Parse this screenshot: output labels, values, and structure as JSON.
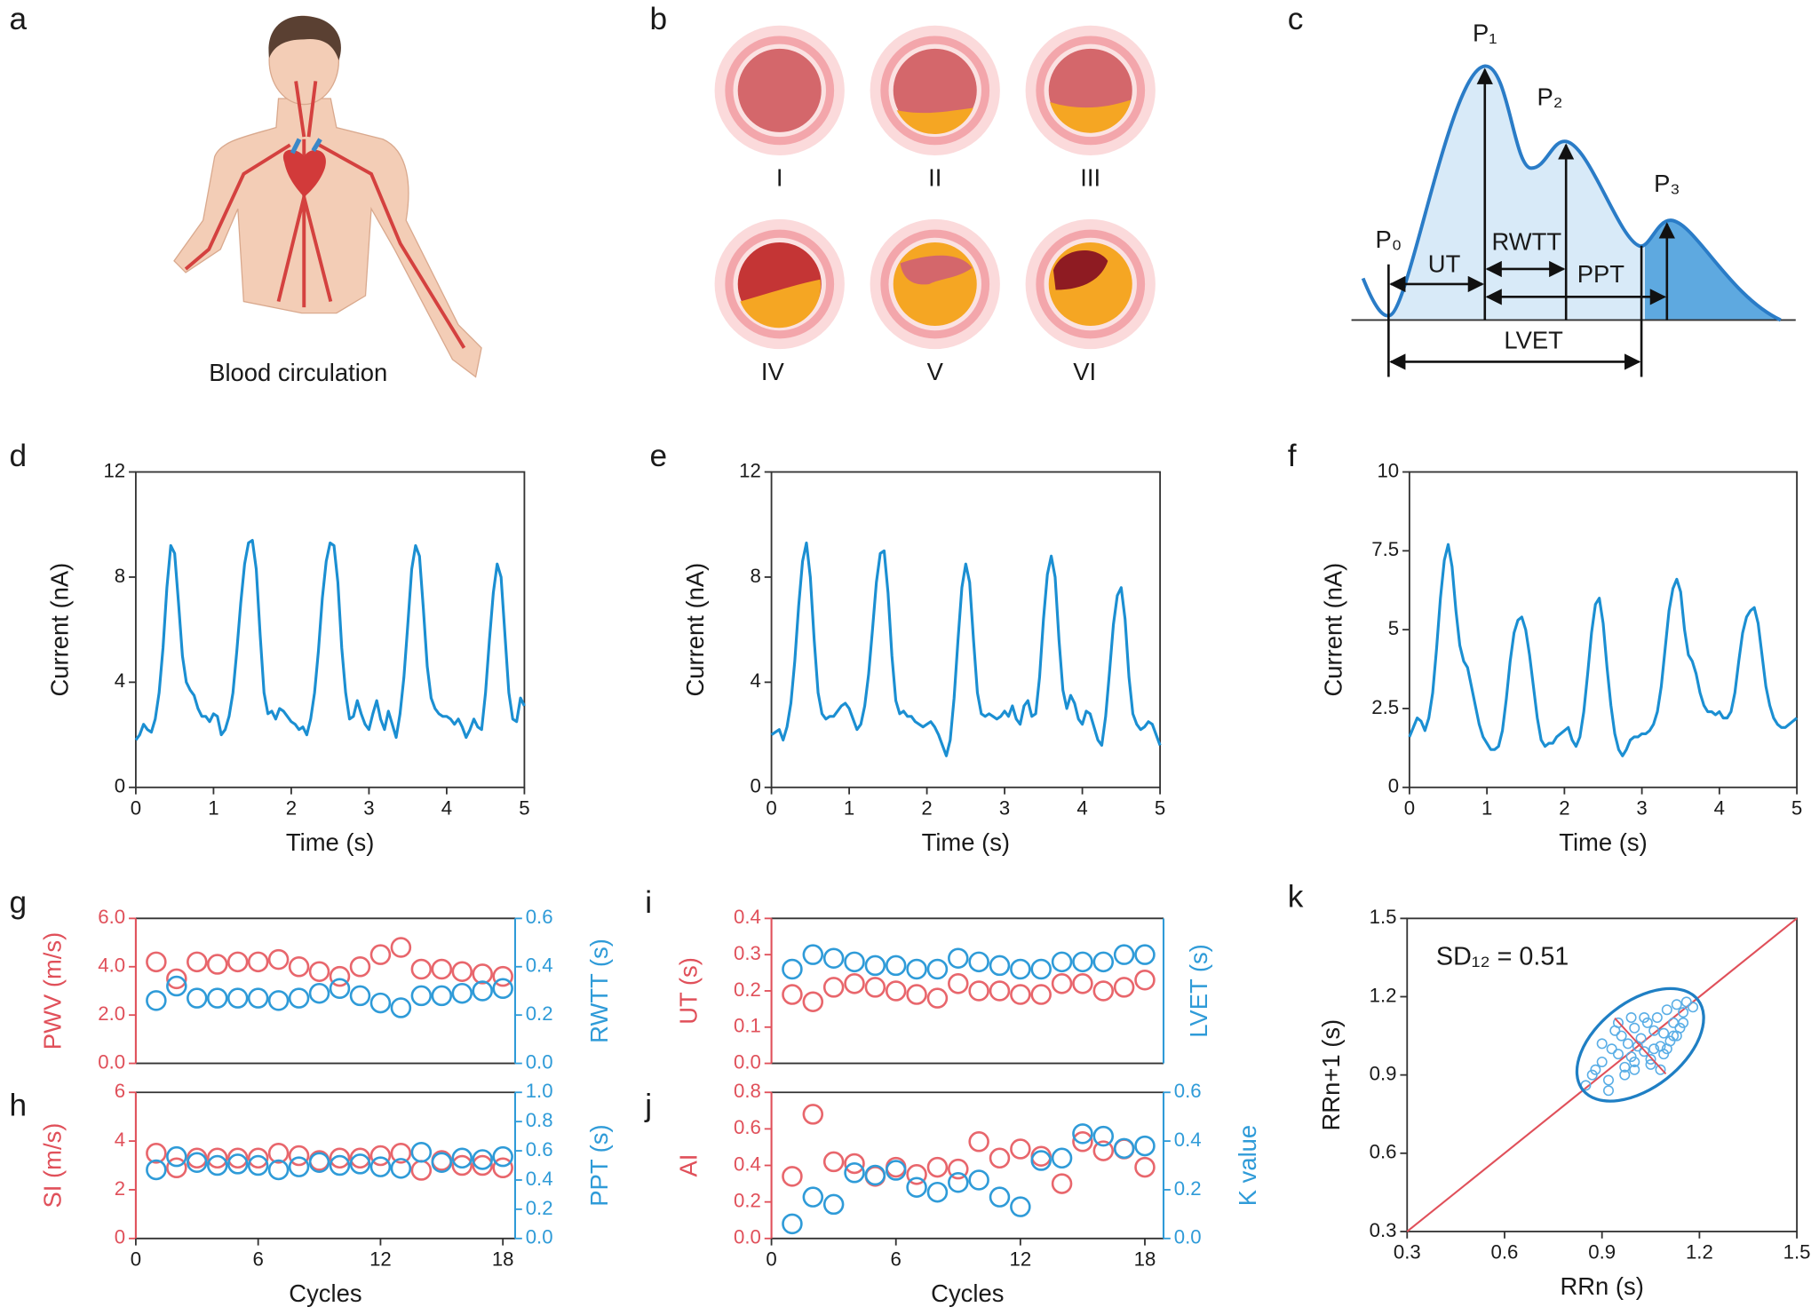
{
  "diagrams": {
    "a": {
      "panel": "a",
      "caption": "Blood circulation"
    },
    "b": {
      "panel": "b",
      "stages": [
        "I",
        "II",
        "III",
        "IV",
        "V",
        "VI"
      ]
    },
    "c": {
      "panel": "c",
      "labels": [
        "P₀",
        "P₁",
        "P₂",
        "P₃",
        "UT",
        "RWTT",
        "PPT",
        "LVET"
      ]
    }
  },
  "chart_data": [
    {
      "panel": "d",
      "type": "line",
      "xlabel": "Time (s)",
      "ylabel": "Current (nA)",
      "color": "#1b8fd2",
      "xlim": [
        0,
        5
      ],
      "ylim": [
        0,
        12
      ],
      "xticks": [
        0,
        1,
        2,
        3,
        4,
        5
      ],
      "yticks": [
        0,
        4,
        8,
        12
      ],
      "x": [
        0,
        0.05,
        0.1,
        0.15,
        0.2,
        0.25,
        0.3,
        0.35,
        0.4,
        0.45,
        0.5,
        0.55,
        0.6,
        0.65,
        0.7,
        0.75,
        0.8,
        0.85,
        0.9,
        0.95,
        1,
        1.05,
        1.1,
        1.15,
        1.2,
        1.25,
        1.3,
        1.35,
        1.4,
        1.45,
        1.5,
        1.55,
        1.6,
        1.65,
        1.7,
        1.75,
        1.8,
        1.85,
        1.9,
        1.95,
        2,
        2.05,
        2.1,
        2.15,
        2.2,
        2.25,
        2.3,
        2.35,
        2.4,
        2.45,
        2.5,
        2.55,
        2.6,
        2.65,
        2.7,
        2.75,
        2.8,
        2.85,
        2.9,
        2.95,
        3,
        3.05,
        3.1,
        3.15,
        3.2,
        3.25,
        3.3,
        3.35,
        3.4,
        3.45,
        3.5,
        3.55,
        3.6,
        3.65,
        3.7,
        3.75,
        3.8,
        3.85,
        3.9,
        3.95,
        4,
        4.05,
        4.1,
        4.15,
        4.2,
        4.25,
        4.3,
        4.35,
        4.4,
        4.45,
        4.5,
        4.55,
        4.6,
        4.65,
        4.7,
        4.75,
        4.8,
        4.85,
        4.9,
        4.95,
        5
      ],
      "values": [
        1.8,
        2.0,
        2.4,
        2.2,
        2.1,
        2.6,
        3.6,
        5.3,
        7.6,
        9.2,
        8.9,
        7.0,
        5.0,
        4.0,
        3.7,
        3.5,
        3.0,
        2.7,
        2.7,
        2.5,
        2.8,
        2.7,
        2.0,
        2.2,
        2.7,
        3.6,
        5.2,
        7.0,
        8.5,
        9.3,
        9.4,
        8.3,
        5.8,
        3.6,
        2.8,
        2.9,
        2.6,
        3.0,
        2.9,
        2.7,
        2.5,
        2.4,
        2.2,
        2.3,
        2.0,
        2.6,
        3.6,
        5.2,
        7.2,
        8.6,
        9.3,
        9.2,
        7.8,
        5.3,
        3.6,
        2.6,
        2.7,
        3.3,
        2.8,
        2.4,
        2.2,
        2.8,
        3.3,
        2.6,
        2.2,
        2.9,
        2.4,
        1.9,
        2.8,
        4.2,
        6.2,
        8.3,
        9.2,
        8.8,
        6.8,
        4.6,
        3.4,
        3.0,
        2.8,
        2.7,
        2.7,
        2.6,
        2.4,
        2.6,
        2.3,
        1.9,
        2.2,
        2.6,
        2.3,
        2.2,
        3.6,
        5.6,
        7.4,
        8.5,
        8.0,
        5.8,
        3.6,
        2.6,
        2.5,
        3.4,
        3.1
      ]
    },
    {
      "panel": "e",
      "type": "line",
      "xlabel": "Time (s)",
      "ylabel": "Current (nA)",
      "color": "#1b8fd2",
      "xlim": [
        0,
        5
      ],
      "ylim": [
        0,
        12
      ],
      "xticks": [
        0,
        1,
        2,
        3,
        4,
        5
      ],
      "yticks": [
        0,
        4,
        8,
        12
      ],
      "x": [
        0,
        0.05,
        0.1,
        0.15,
        0.2,
        0.25,
        0.3,
        0.35,
        0.4,
        0.45,
        0.5,
        0.55,
        0.6,
        0.65,
        0.7,
        0.75,
        0.8,
        0.85,
        0.9,
        0.95,
        1,
        1.05,
        1.1,
        1.15,
        1.2,
        1.25,
        1.3,
        1.35,
        1.4,
        1.45,
        1.5,
        1.55,
        1.6,
        1.65,
        1.7,
        1.75,
        1.8,
        1.85,
        1.9,
        1.95,
        2,
        2.05,
        2.1,
        2.15,
        2.2,
        2.25,
        2.3,
        2.35,
        2.4,
        2.45,
        2.5,
        2.55,
        2.6,
        2.65,
        2.7,
        2.75,
        2.8,
        2.85,
        2.9,
        2.95,
        3,
        3.05,
        3.1,
        3.15,
        3.2,
        3.25,
        3.3,
        3.35,
        3.4,
        3.45,
        3.5,
        3.55,
        3.6,
        3.65,
        3.7,
        3.75,
        3.8,
        3.85,
        3.9,
        3.95,
        4,
        4.05,
        4.1,
        4.15,
        4.2,
        4.25,
        4.3,
        4.35,
        4.4,
        4.45,
        4.5,
        4.55,
        4.6,
        4.65,
        4.7,
        4.75,
        4.8,
        4.85,
        4.9,
        4.95,
        5
      ],
      "values": [
        2.0,
        2.1,
        2.2,
        1.8,
        2.3,
        3.2,
        4.8,
        6.9,
        8.6,
        9.3,
        8.0,
        5.6,
        3.6,
        2.8,
        2.6,
        2.7,
        2.7,
        2.9,
        3.1,
        3.2,
        3.0,
        2.6,
        2.2,
        2.4,
        3.1,
        4.3,
        6.0,
        7.8,
        8.9,
        9.0,
        7.4,
        5.0,
        3.3,
        2.8,
        2.9,
        2.7,
        2.7,
        2.5,
        2.4,
        2.3,
        2.4,
        2.5,
        2.3,
        2.0,
        1.6,
        1.2,
        1.8,
        3.4,
        5.6,
        7.6,
        8.5,
        7.8,
        5.6,
        3.6,
        2.8,
        2.7,
        2.8,
        2.7,
        2.6,
        2.7,
        2.9,
        2.7,
        3.1,
        2.6,
        2.4,
        3.1,
        3.3,
        2.7,
        2.8,
        4.2,
        6.4,
        8.1,
        8.8,
        8.0,
        5.6,
        3.7,
        3.0,
        3.5,
        3.2,
        2.6,
        2.4,
        2.9,
        2.8,
        2.3,
        1.8,
        1.6,
        2.7,
        4.4,
        6.2,
        7.3,
        7.6,
        6.4,
        4.2,
        2.8,
        2.4,
        2.2,
        2.3,
        2.5,
        2.4,
        2.0,
        1.6
      ]
    },
    {
      "panel": "f",
      "type": "line",
      "xlabel": "Time (s)",
      "ylabel": "Current (nA)",
      "color": "#1b8fd2",
      "xlim": [
        0,
        5
      ],
      "ylim": [
        0,
        10
      ],
      "xticks": [
        0,
        1,
        2,
        3,
        4,
        5
      ],
      "yticks": [
        0,
        2.5,
        5,
        7.5,
        10
      ],
      "x": [
        0,
        0.05,
        0.1,
        0.15,
        0.2,
        0.25,
        0.3,
        0.35,
        0.4,
        0.45,
        0.5,
        0.55,
        0.6,
        0.65,
        0.7,
        0.75,
        0.8,
        0.85,
        0.9,
        0.95,
        1,
        1.05,
        1.1,
        1.15,
        1.2,
        1.25,
        1.3,
        1.35,
        1.4,
        1.45,
        1.5,
        1.55,
        1.6,
        1.65,
        1.7,
        1.75,
        1.8,
        1.85,
        1.9,
        1.95,
        2,
        2.05,
        2.1,
        2.15,
        2.2,
        2.25,
        2.3,
        2.35,
        2.4,
        2.45,
        2.5,
        2.55,
        2.6,
        2.65,
        2.7,
        2.75,
        2.8,
        2.85,
        2.9,
        2.95,
        3,
        3.05,
        3.1,
        3.15,
        3.2,
        3.25,
        3.3,
        3.35,
        3.4,
        3.45,
        3.5,
        3.55,
        3.6,
        3.65,
        3.7,
        3.75,
        3.8,
        3.85,
        3.9,
        3.95,
        4,
        4.05,
        4.1,
        4.15,
        4.2,
        4.25,
        4.3,
        4.35,
        4.4,
        4.45,
        4.5,
        4.55,
        4.6,
        4.65,
        4.7,
        4.75,
        4.8,
        4.85,
        4.9,
        4.95,
        5
      ],
      "values": [
        1.6,
        1.9,
        2.2,
        2.1,
        1.8,
        2.2,
        3.0,
        4.4,
        6.0,
        7.2,
        7.7,
        7.0,
        5.6,
        4.5,
        4.0,
        3.8,
        3.2,
        2.6,
        2.0,
        1.6,
        1.4,
        1.2,
        1.2,
        1.3,
        1.8,
        2.8,
        4.0,
        4.9,
        5.3,
        5.4,
        5.0,
        4.2,
        3.2,
        2.2,
        1.5,
        1.3,
        1.4,
        1.4,
        1.6,
        1.7,
        1.8,
        1.9,
        1.5,
        1.3,
        1.6,
        2.4,
        3.6,
        4.9,
        5.8,
        6.0,
        5.2,
        3.8,
        2.6,
        1.7,
        1.2,
        1.0,
        1.2,
        1.5,
        1.6,
        1.6,
        1.7,
        1.7,
        1.8,
        2.0,
        2.4,
        3.2,
        4.4,
        5.6,
        6.3,
        6.6,
        6.2,
        5.0,
        4.2,
        4.0,
        3.6,
        3.0,
        2.6,
        2.4,
        2.4,
        2.3,
        2.4,
        2.2,
        2.2,
        2.4,
        3.0,
        4.0,
        4.9,
        5.4,
        5.6,
        5.7,
        5.2,
        4.2,
        3.2,
        2.6,
        2.2,
        2.0,
        1.9,
        1.9,
        2.0,
        2.1,
        2.2
      ]
    },
    {
      "panel": "g",
      "type": "scatter",
      "ylabel": "PWV (m/s)",
      "y2label": "RWTT (s)",
      "x": [
        1,
        2,
        3,
        4,
        5,
        6,
        7,
        8,
        9,
        10,
        11,
        12,
        13,
        14,
        15,
        16,
        17,
        18
      ],
      "xlim": [
        0,
        18.6
      ],
      "ylim": [
        0,
        6
      ],
      "yticks": [
        {
          "value": 0,
          "label": "0.0"
        },
        {
          "value": 2,
          "label": "2.0"
        },
        {
          "value": 4,
          "label": "4.0"
        },
        {
          "value": 6,
          "label": "6.0"
        }
      ],
      "y2lim": [
        0,
        0.6
      ],
      "y2ticks": [
        {
          "value": 0,
          "label": "0.0"
        },
        0.2,
        0.4,
        0.6
      ],
      "series": [
        {
          "color": "#e8666c",
          "values": [
            4.2,
            3.5,
            4.2,
            4.1,
            4.2,
            4.2,
            4.3,
            4.0,
            3.8,
            3.6,
            4.0,
            4.5,
            4.8,
            3.9,
            3.9,
            3.8,
            3.7,
            3.6
          ]
        },
        {
          "color": "#2f9bd8",
          "axis": "y2",
          "values": [
            0.26,
            0.32,
            0.27,
            0.27,
            0.27,
            0.27,
            0.26,
            0.27,
            0.29,
            0.31,
            0.28,
            0.25,
            0.23,
            0.28,
            0.28,
            0.29,
            0.3,
            0.31
          ]
        }
      ]
    },
    {
      "panel": "h",
      "type": "scatter",
      "xlabel": "Cycles",
      "ylabel": "SI (m/s)",
      "y2label": "PPT (s)",
      "x": [
        1,
        2,
        3,
        4,
        5,
        6,
        7,
        8,
        9,
        10,
        11,
        12,
        13,
        14,
        15,
        16,
        17,
        18
      ],
      "xlim": [
        0,
        18.6
      ],
      "xticks": [
        0,
        6,
        12,
        18
      ],
      "ylim": [
        0,
        6
      ],
      "yticks": [
        0,
        2,
        4,
        6
      ],
      "y2lim": [
        0,
        1
      ],
      "y2ticks": [
        {
          "value": 0,
          "label": "0.0"
        },
        0.2,
        0.4,
        0.6,
        0.8,
        {
          "value": 1,
          "label": "1.0"
        }
      ],
      "series": [
        {
          "color": "#e8666c",
          "values": [
            3.5,
            2.9,
            3.3,
            3.3,
            3.3,
            3.3,
            3.5,
            3.4,
            3.2,
            3.3,
            3.3,
            3.4,
            3.5,
            2.8,
            3.2,
            3.0,
            3.0,
            2.9
          ]
        },
        {
          "color": "#2f9bd8",
          "axis": "y2",
          "values": [
            0.47,
            0.56,
            0.52,
            0.5,
            0.51,
            0.5,
            0.47,
            0.49,
            0.52,
            0.5,
            0.51,
            0.49,
            0.48,
            0.59,
            0.52,
            0.55,
            0.54,
            0.56
          ]
        }
      ]
    },
    {
      "panel": "i",
      "type": "scatter",
      "ylabel": "UT (s)",
      "y2label": "LVET (s)",
      "x": [
        1,
        2,
        3,
        4,
        5,
        6,
        7,
        8,
        9,
        10,
        11,
        12,
        13,
        14,
        15,
        16,
        17,
        18
      ],
      "xlim": [
        0,
        18.9
      ],
      "ylim": [
        0,
        0.4
      ],
      "yticks": [
        {
          "value": 0,
          "label": "0.0"
        },
        0.1,
        0.2,
        0.3,
        0.4
      ],
      "y2lim": [
        0,
        0.4
      ],
      "series": [
        {
          "color": "#e8666c",
          "values": [
            0.19,
            0.17,
            0.21,
            0.22,
            0.21,
            0.2,
            0.19,
            0.18,
            0.22,
            0.2,
            0.2,
            0.19,
            0.19,
            0.22,
            0.22,
            0.2,
            0.21,
            0.23
          ]
        },
        {
          "color": "#2f9bd8",
          "axis": "y2",
          "values": [
            0.26,
            0.3,
            0.29,
            0.28,
            0.27,
            0.27,
            0.26,
            0.26,
            0.29,
            0.28,
            0.27,
            0.26,
            0.26,
            0.28,
            0.28,
            0.28,
            0.3,
            0.3
          ]
        }
      ]
    },
    {
      "panel": "j",
      "type": "scatter",
      "xlabel": "Cycles",
      "ylabel": "AI",
      "y2label": "K value",
      "x": [
        1,
        2,
        3,
        4,
        5,
        6,
        7,
        8,
        9,
        10,
        11,
        12,
        13,
        14,
        15,
        16,
        17,
        18
      ],
      "xlim": [
        0,
        18.9
      ],
      "xticks": [
        0,
        6,
        12,
        18
      ],
      "ylim": [
        0,
        0.8
      ],
      "yticks": [
        {
          "value": 0,
          "label": "0.0"
        },
        0.2,
        0.4,
        0.6,
        0.8
      ],
      "y2lim": [
        0,
        0.6
      ],
      "y2ticks": [
        {
          "value": 0,
          "label": "0.0"
        },
        0.2,
        0.4,
        0.6
      ],
      "series": [
        {
          "color": "#e8666c",
          "values": [
            0.34,
            0.68,
            0.42,
            0.41,
            0.34,
            0.39,
            0.35,
            0.39,
            0.38,
            0.53,
            0.44,
            0.49,
            0.45,
            0.3,
            0.53,
            0.48,
            0.49,
            0.39
          ]
        },
        {
          "color": "#2f9bd8",
          "axis": "y2",
          "values": [
            0.06,
            0.17,
            0.14,
            0.27,
            0.26,
            0.28,
            0.21,
            0.19,
            0.23,
            0.24,
            0.17,
            0.13,
            0.32,
            0.33,
            0.43,
            0.42,
            0.37,
            0.38
          ]
        }
      ]
    },
    {
      "panel": "k",
      "type": "scatter",
      "xlabel": "RRn (s)",
      "ylabel": "RRn+1 (s)",
      "annotation": "SD₁₂ = 0.51",
      "color": "#5aaee6",
      "xlim": [
        0.3,
        1.5
      ],
      "ylim": [
        0.3,
        1.5
      ],
      "xticks": [
        0.3,
        0.6,
        0.9,
        1.2,
        1.5
      ],
      "yticks": [
        0.3,
        0.6,
        0.9,
        1.2,
        1.5
      ],
      "x": [
        0.85,
        0.88,
        0.9,
        0.92,
        0.93,
        0.95,
        0.96,
        0.97,
        0.98,
        0.99,
        1.0,
        1.0,
        1.01,
        1.02,
        1.03,
        1.04,
        1.05,
        1.06,
        1.07,
        1.08,
        1.09,
        1.1,
        1.11,
        1.12,
        1.13,
        1.14,
        1.15,
        1.16,
        0.94,
        0.97,
        1.0,
        1.03,
        1.06,
        1.09,
        1.12,
        0.9,
        0.95,
        1.05,
        1.1,
        1.15,
        0.87,
        0.92,
        0.99,
        1.08,
        1.13,
        1.18
      ],
      "values": [
        0.86,
        0.92,
        0.95,
        0.88,
        1.0,
        0.98,
        1.05,
        0.93,
        1.02,
        0.97,
        1.08,
        0.95,
        1.01,
        1.04,
        0.99,
        1.1,
        0.96,
        1.07,
        1.12,
        1.01,
        1.06,
        1.15,
        1.03,
        1.1,
        1.17,
        1.08,
        1.14,
        1.18,
        1.07,
        0.9,
        0.92,
        1.12,
        1.0,
        0.98,
        1.05,
        1.02,
        1.1,
        0.94,
        1.0,
        1.1,
        0.9,
        0.84,
        1.12,
        0.92,
        1.05,
        1.16
      ]
    }
  ]
}
